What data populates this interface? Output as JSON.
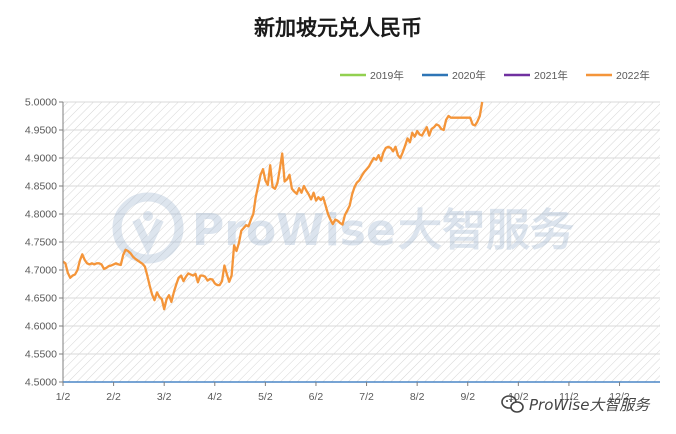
{
  "chart_data": {
    "type": "line",
    "title": "新加坡元兑人民币",
    "xlabel": "",
    "ylabel": "",
    "ylim": [
      4.5,
      5.0
    ],
    "y_ticks": [
      "4.5000",
      "4.5500",
      "4.6000",
      "4.6500",
      "4.7000",
      "4.7500",
      "4.8000",
      "4.8500",
      "4.9000",
      "4.9500",
      "5.0000"
    ],
    "x_ticks": [
      "1/2",
      "2/2",
      "3/2",
      "4/2",
      "5/2",
      "6/2",
      "7/2",
      "8/2",
      "9/2",
      "10/2",
      "11/2",
      "12/2"
    ],
    "legend_position": "top-right",
    "grid": true,
    "series": [
      {
        "name": "2019年",
        "color": "#92d050",
        "values": []
      },
      {
        "name": "2020年",
        "color": "#2e75b6",
        "values": []
      },
      {
        "name": "2021年",
        "color": "#7030a0",
        "values": []
      },
      {
        "name": "2022年",
        "color": "#f4953a",
        "values": [
          [
            0,
            4.715
          ],
          [
            1,
            4.712
          ],
          [
            2,
            4.695
          ],
          [
            3,
            4.686
          ],
          [
            4,
            4.69
          ],
          [
            5,
            4.692
          ],
          [
            6,
            4.7
          ],
          [
            7,
            4.717
          ],
          [
            8,
            4.728
          ],
          [
            9,
            4.718
          ],
          [
            10,
            4.712
          ],
          [
            11,
            4.71
          ],
          [
            12,
            4.712
          ],
          [
            13,
            4.71
          ],
          [
            14,
            4.712
          ],
          [
            15,
            4.712
          ],
          [
            16,
            4.71
          ],
          [
            17,
            4.702
          ],
          [
            18,
            4.704
          ],
          [
            19,
            4.707
          ],
          [
            20,
            4.708
          ],
          [
            21,
            4.71
          ],
          [
            22,
            4.712
          ],
          [
            23,
            4.71
          ],
          [
            24,
            4.709
          ],
          [
            25,
            4.727
          ],
          [
            26,
            4.736
          ],
          [
            27,
            4.734
          ],
          [
            28,
            4.73
          ],
          [
            29,
            4.724
          ],
          [
            30,
            4.72
          ],
          [
            31,
            4.717
          ],
          [
            32,
            4.714
          ],
          [
            33,
            4.711
          ],
          [
            34,
            4.706
          ],
          [
            35,
            4.69
          ],
          [
            36,
            4.672
          ],
          [
            37,
            4.656
          ],
          [
            38,
            4.646
          ],
          [
            39,
            4.66
          ],
          [
            40,
            4.652
          ],
          [
            41,
            4.648
          ],
          [
            42,
            4.63
          ],
          [
            43,
            4.648
          ],
          [
            44,
            4.655
          ],
          [
            45,
            4.643
          ],
          [
            46,
            4.66
          ],
          [
            47,
            4.674
          ],
          [
            48,
            4.686
          ],
          [
            49,
            4.69
          ],
          [
            50,
            4.68
          ],
          [
            51,
            4.688
          ],
          [
            52,
            4.694
          ],
          [
            53,
            4.692
          ],
          [
            54,
            4.69
          ],
          [
            55,
            4.693
          ],
          [
            56,
            4.678
          ],
          [
            57,
            4.69
          ],
          [
            58,
            4.69
          ],
          [
            59,
            4.688
          ],
          [
            60,
            4.681
          ],
          [
            61,
            4.684
          ],
          [
            62,
            4.683
          ],
          [
            63,
            4.676
          ],
          [
            64,
            4.673
          ],
          [
            65,
            4.673
          ],
          [
            66,
            4.68
          ],
          [
            67,
            4.708
          ],
          [
            68,
            4.693
          ],
          [
            69,
            4.679
          ],
          [
            70,
            4.69
          ],
          [
            71,
            4.744
          ],
          [
            72,
            4.734
          ],
          [
            73,
            4.748
          ],
          [
            74,
            4.77
          ],
          [
            75,
            4.775
          ],
          [
            76,
            4.78
          ],
          [
            77,
            4.778
          ],
          [
            78,
            4.79
          ],
          [
            79,
            4.8
          ],
          [
            80,
            4.83
          ],
          [
            81,
            4.85
          ],
          [
            82,
            4.87
          ],
          [
            83,
            4.88
          ],
          [
            84,
            4.86
          ],
          [
            85,
            4.852
          ],
          [
            86,
            4.887
          ],
          [
            87,
            4.848
          ],
          [
            88,
            4.845
          ],
          [
            89,
            4.855
          ],
          [
            90,
            4.88
          ],
          [
            91,
            4.908
          ],
          [
            92,
            4.858
          ],
          [
            93,
            4.862
          ],
          [
            94,
            4.87
          ],
          [
            95,
            4.845
          ],
          [
            96,
            4.84
          ],
          [
            97,
            4.836
          ],
          [
            98,
            4.846
          ],
          [
            99,
            4.838
          ],
          [
            100,
            4.85
          ],
          [
            101,
            4.842
          ],
          [
            102,
            4.835
          ],
          [
            103,
            4.826
          ],
          [
            104,
            4.838
          ],
          [
            105,
            4.824
          ],
          [
            106,
            4.83
          ],
          [
            107,
            4.825
          ],
          [
            108,
            4.83
          ],
          [
            109,
            4.815
          ],
          [
            110,
            4.8
          ],
          [
            111,
            4.79
          ],
          [
            112,
            4.782
          ],
          [
            113,
            4.79
          ],
          [
            114,
            4.788
          ],
          [
            115,
            4.784
          ],
          [
            116,
            4.781
          ],
          [
            117,
            4.798
          ],
          [
            118,
            4.806
          ],
          [
            119,
            4.815
          ],
          [
            120,
            4.835
          ],
          [
            121,
            4.848
          ],
          [
            122,
            4.856
          ],
          [
            123,
            4.86
          ],
          [
            124,
            4.868
          ],
          [
            125,
            4.875
          ],
          [
            126,
            4.88
          ],
          [
            127,
            4.885
          ],
          [
            128,
            4.893
          ],
          [
            129,
            4.9
          ],
          [
            130,
            4.897
          ],
          [
            131,
            4.905
          ],
          [
            132,
            4.895
          ],
          [
            133,
            4.91
          ],
          [
            134,
            4.918
          ],
          [
            135,
            4.92
          ],
          [
            136,
            4.918
          ],
          [
            137,
            4.912
          ],
          [
            138,
            4.92
          ],
          [
            139,
            4.905
          ],
          [
            140,
            4.9
          ],
          [
            141,
            4.91
          ],
          [
            142,
            4.922
          ],
          [
            143,
            4.935
          ],
          [
            144,
            4.928
          ],
          [
            145,
            4.945
          ],
          [
            146,
            4.938
          ],
          [
            147,
            4.948
          ],
          [
            148,
            4.942
          ],
          [
            149,
            4.94
          ],
          [
            150,
            4.948
          ],
          [
            151,
            4.955
          ],
          [
            152,
            4.94
          ],
          [
            153,
            4.952
          ],
          [
            154,
            4.955
          ],
          [
            155,
            4.96
          ],
          [
            156,
            4.958
          ],
          [
            157,
            4.952
          ],
          [
            158,
            4.95
          ],
          [
            159,
            4.968
          ],
          [
            160,
            4.975
          ],
          [
            161,
            4.972
          ],
          [
            162,
            4.972
          ],
          [
            163,
            4.972
          ],
          [
            164,
            4.972
          ],
          [
            165,
            4.972
          ],
          [
            166,
            4.972
          ],
          [
            167,
            4.972
          ],
          [
            168,
            4.972
          ],
          [
            169,
            4.972
          ],
          [
            170,
            4.96
          ],
          [
            171,
            4.958
          ],
          [
            172,
            4.965
          ],
          [
            173,
            4.975
          ],
          [
            174,
            5.0
          ]
        ]
      }
    ]
  },
  "watermark": {
    "brand": "ProWise",
    "suffix": "大智服务",
    "footer_text": "ProWise大智服务"
  }
}
